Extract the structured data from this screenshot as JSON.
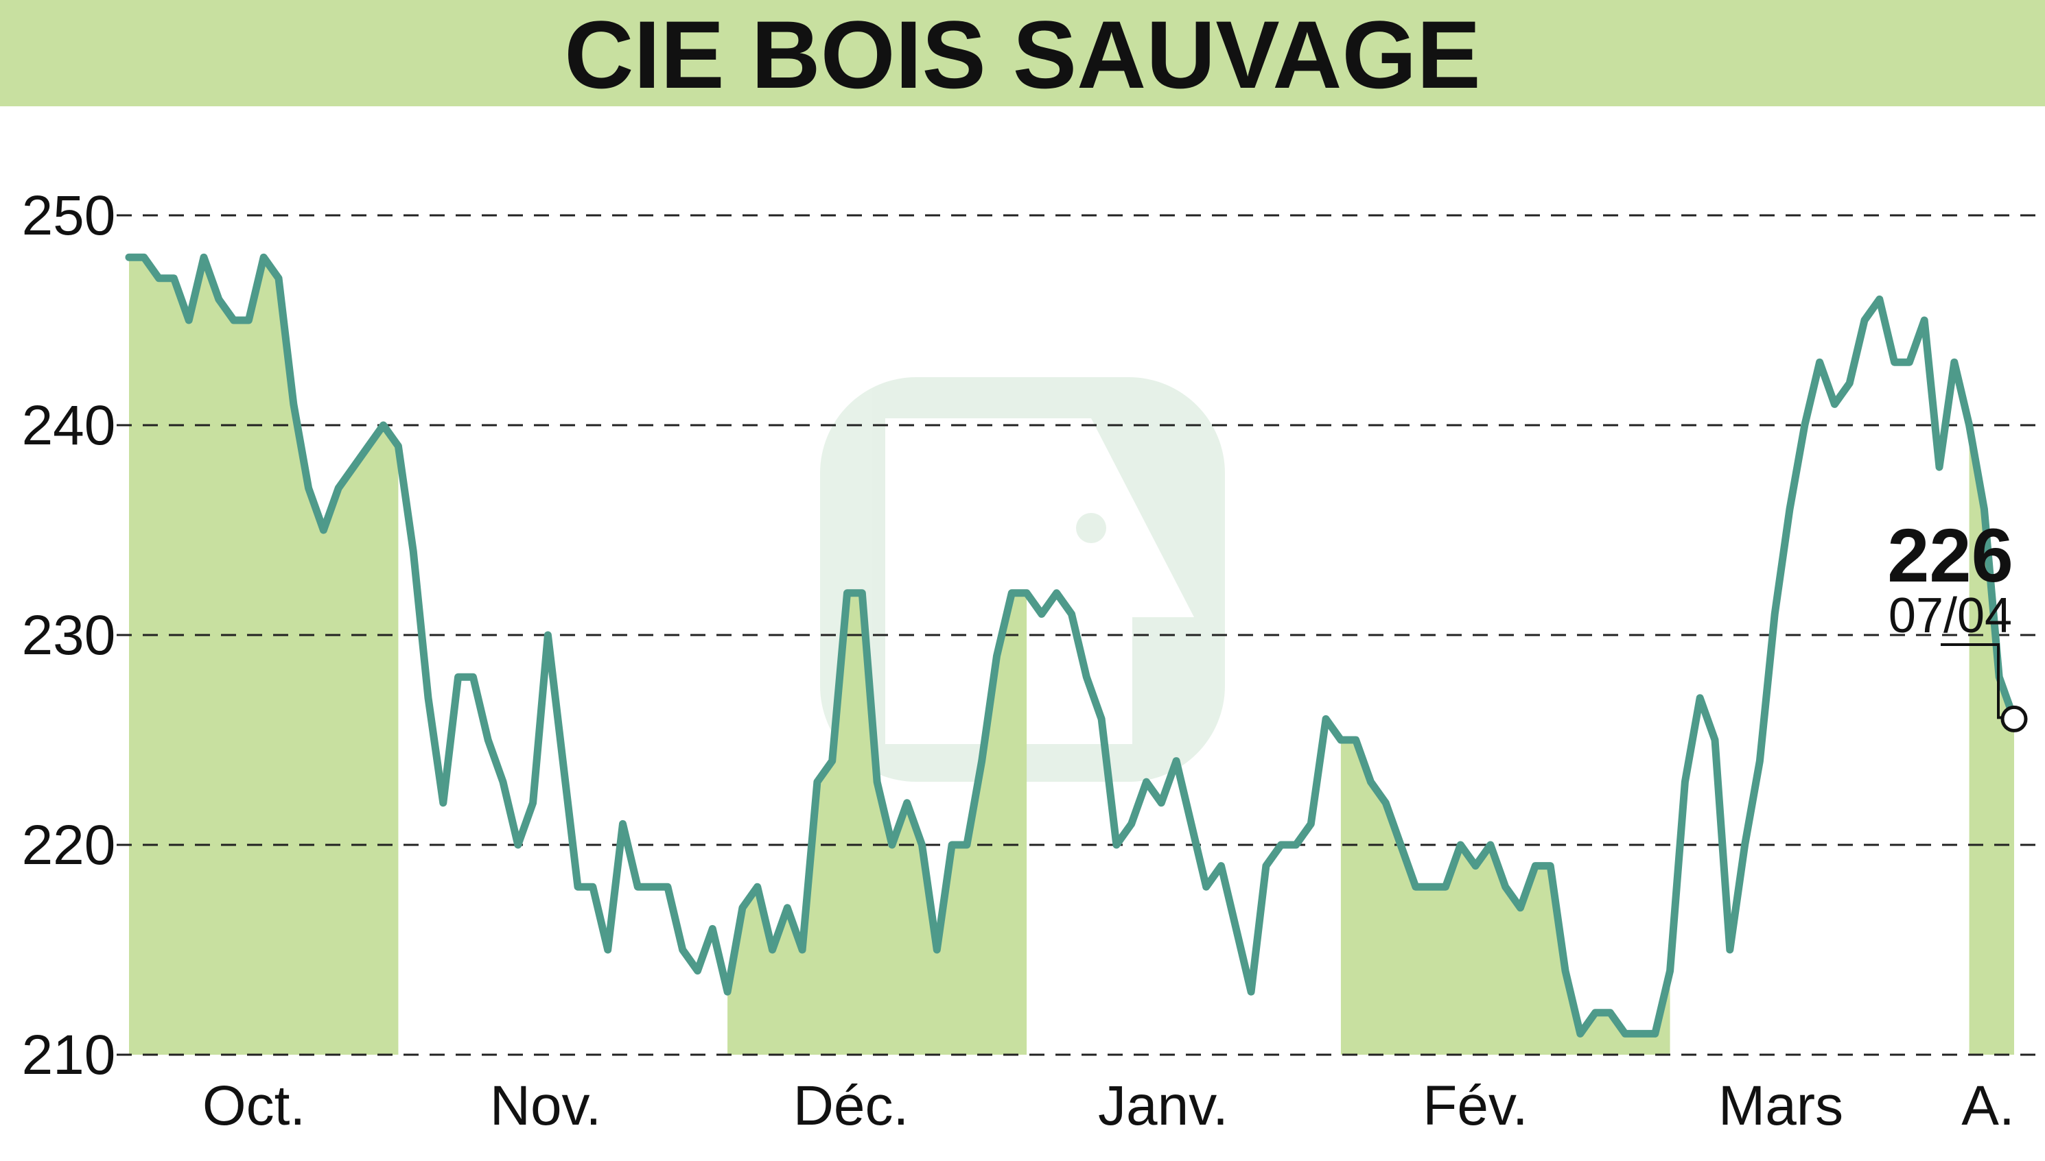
{
  "chart_data": {
    "type": "line",
    "title": "CIE BOIS SAUVAGE",
    "xlabel": "",
    "ylabel": "",
    "ylim": [
      210,
      250
    ],
    "yticks": [
      210,
      220,
      230,
      240,
      250
    ],
    "grid": "dashed-horizontal",
    "month_labels": [
      "Oct.",
      "Nov.",
      "Déc.",
      "Janv.",
      "Fév.",
      "Mars",
      "A."
    ],
    "colors": {
      "line": "#4e9a8a",
      "fill": "#c8e0a0",
      "title_band": "#c8e0a0",
      "text": "#111111"
    },
    "last_value": {
      "value": "226",
      "date": "07/04"
    },
    "series": [
      {
        "values": [
          248,
          248,
          247,
          247,
          245,
          248,
          246,
          245,
          245,
          248,
          247,
          241,
          237,
          235,
          237,
          238,
          239,
          240,
          239,
          234,
          227,
          222,
          228,
          228,
          225,
          223,
          220,
          222,
          230,
          224,
          218,
          218,
          215,
          221,
          218,
          218,
          218,
          215,
          214,
          216,
          213,
          217,
          218,
          215,
          217,
          215,
          223,
          224,
          232,
          232,
          223,
          220,
          222,
          220,
          215,
          220,
          220,
          224,
          229,
          232,
          232,
          231,
          232,
          231,
          228,
          226,
          220,
          221,
          223,
          222,
          224,
          221,
          218,
          219,
          216,
          213,
          219,
          220,
          220,
          221,
          226,
          225,
          225,
          223,
          222,
          220,
          218,
          218,
          218,
          220,
          219,
          220,
          218,
          217,
          219,
          219,
          214,
          211,
          212,
          212,
          211,
          211,
          211,
          214,
          223,
          227,
          225,
          215,
          220,
          224,
          231,
          236,
          240,
          243,
          241,
          242,
          245,
          246,
          243,
          243,
          245,
          238,
          243,
          240,
          236,
          228,
          226
        ]
      }
    ]
  }
}
